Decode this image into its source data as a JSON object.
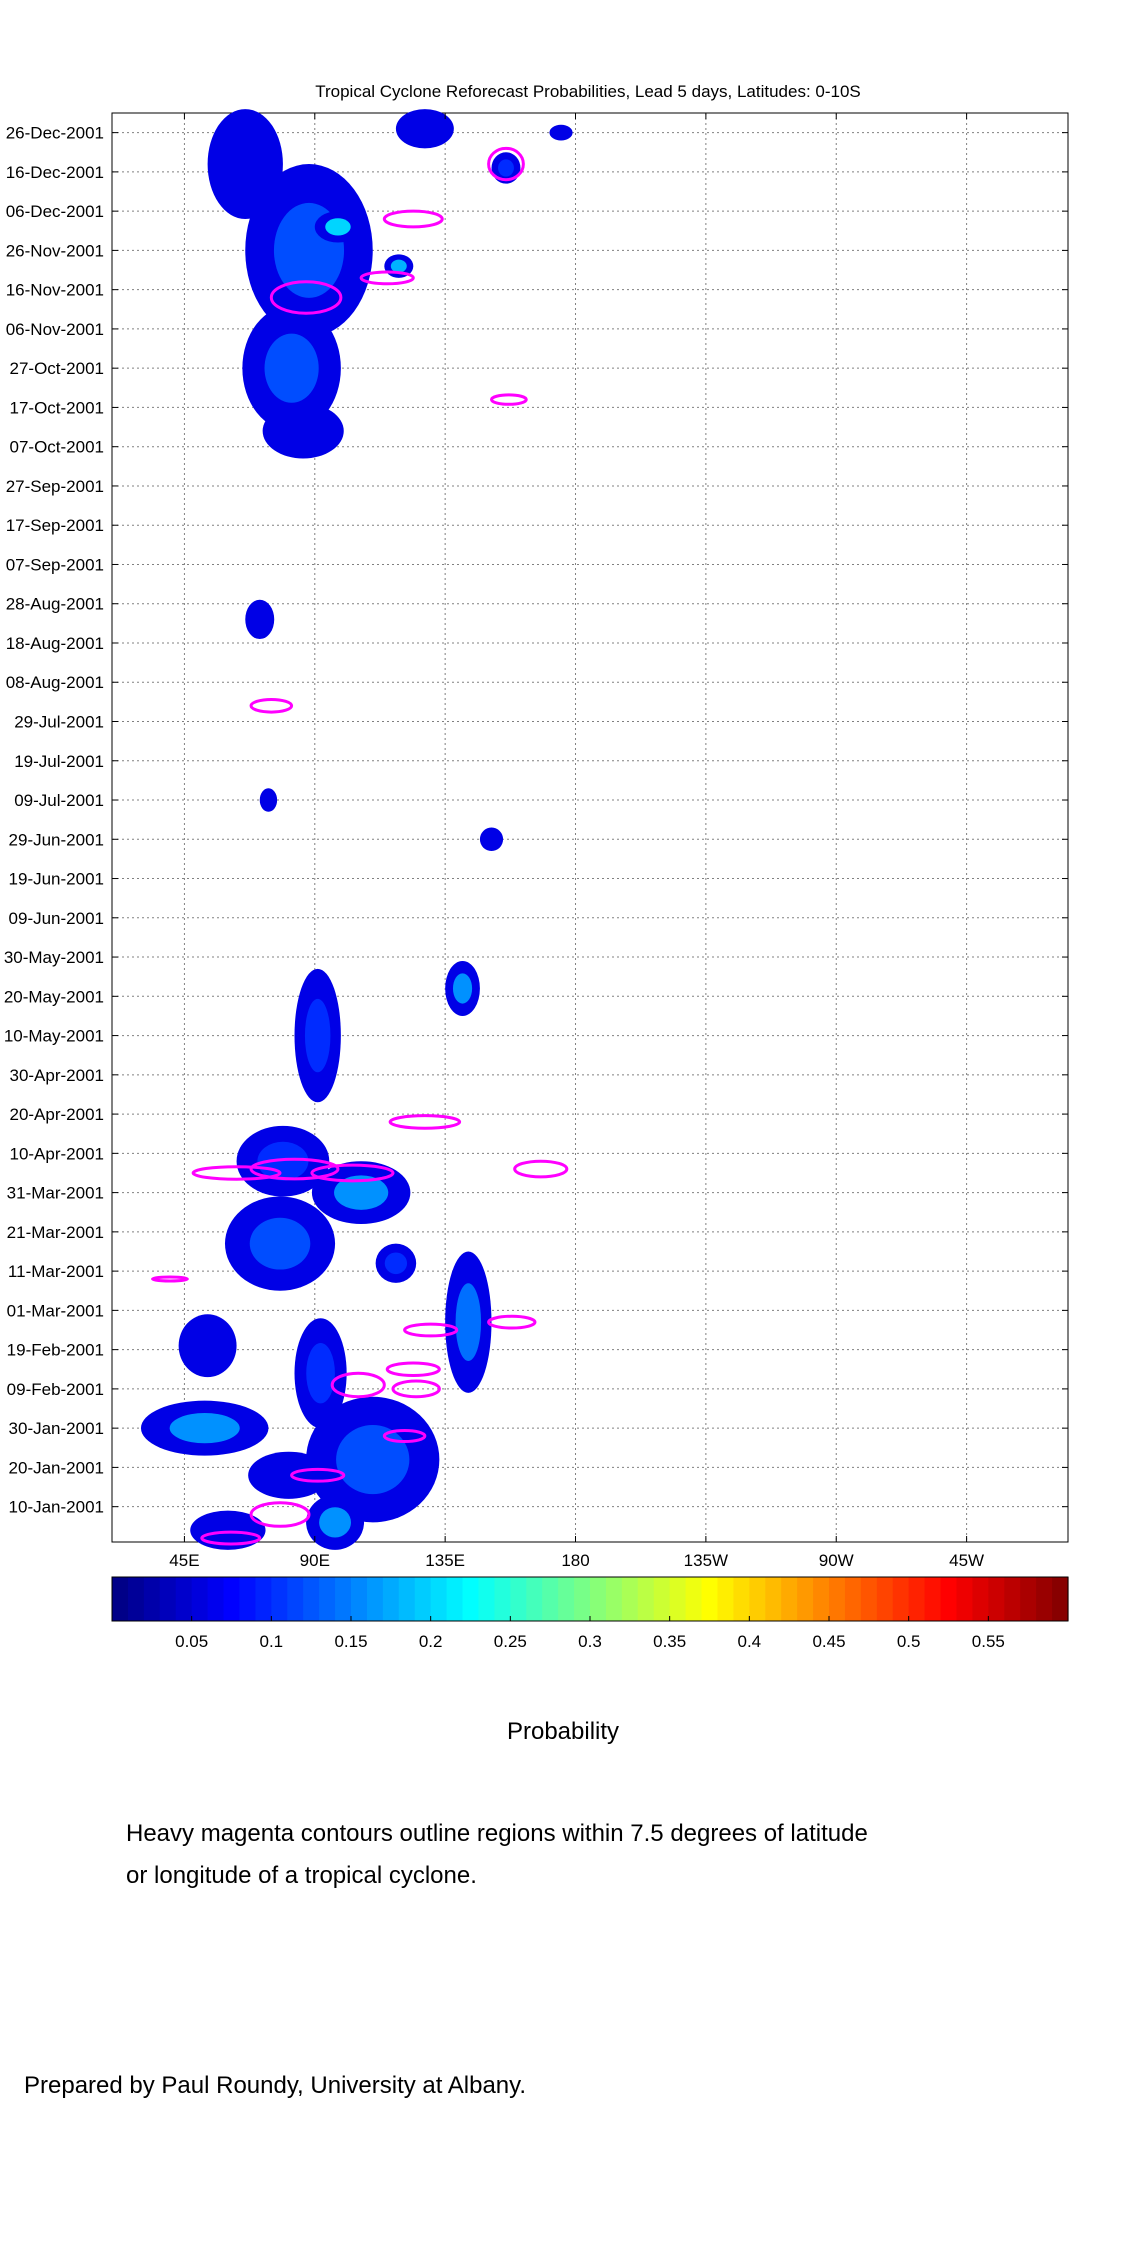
{
  "chart_data": {
    "type": "heatmap",
    "title": "Tropical Cyclone Reforecast Probabilities, Lead 5 days, Latitudes: 0-10S",
    "x_ticks": [
      {
        "lon": 45,
        "label": "45E"
      },
      {
        "lon": 90,
        "label": "90E"
      },
      {
        "lon": 135,
        "label": "135E"
      },
      {
        "lon": 180,
        "label": "180"
      },
      {
        "lon": 225,
        "label": "135W"
      },
      {
        "lon": 270,
        "label": "90W"
      },
      {
        "lon": 315,
        "label": "45W"
      }
    ],
    "xlim": [
      20,
      350
    ],
    "y_ticks": [
      {
        "day": 360,
        "label": "26-Dec-2001"
      },
      {
        "day": 350,
        "label": "16-Dec-2001"
      },
      {
        "day": 340,
        "label": "06-Dec-2001"
      },
      {
        "day": 330,
        "label": "26-Nov-2001"
      },
      {
        "day": 320,
        "label": "16-Nov-2001"
      },
      {
        "day": 310,
        "label": "06-Nov-2001"
      },
      {
        "day": 300,
        "label": "27-Oct-2001"
      },
      {
        "day": 290,
        "label": "17-Oct-2001"
      },
      {
        "day": 280,
        "label": "07-Oct-2001"
      },
      {
        "day": 270,
        "label": "27-Sep-2001"
      },
      {
        "day": 260,
        "label": "17-Sep-2001"
      },
      {
        "day": 250,
        "label": "07-Sep-2001"
      },
      {
        "day": 240,
        "label": "28-Aug-2001"
      },
      {
        "day": 230,
        "label": "18-Aug-2001"
      },
      {
        "day": 220,
        "label": "08-Aug-2001"
      },
      {
        "day": 210,
        "label": "29-Jul-2001"
      },
      {
        "day": 200,
        "label": "19-Jul-2001"
      },
      {
        "day": 190,
        "label": "09-Jul-2001"
      },
      {
        "day": 180,
        "label": "29-Jun-2001"
      },
      {
        "day": 170,
        "label": "19-Jun-2001"
      },
      {
        "day": 160,
        "label": "09-Jun-2001"
      },
      {
        "day": 150,
        "label": "30-May-2001"
      },
      {
        "day": 140,
        "label": "20-May-2001"
      },
      {
        "day": 130,
        "label": "10-May-2001"
      },
      {
        "day": 120,
        "label": "30-Apr-2001"
      },
      {
        "day": 110,
        "label": "20-Apr-2001"
      },
      {
        "day": 100,
        "label": "10-Apr-2001"
      },
      {
        "day": 90,
        "label": "31-Mar-2001"
      },
      {
        "day": 80,
        "label": "21-Mar-2001"
      },
      {
        "day": 70,
        "label": "11-Mar-2001"
      },
      {
        "day": 60,
        "label": "01-Mar-2001"
      },
      {
        "day": 50,
        "label": "19-Feb-2001"
      },
      {
        "day": 40,
        "label": "09-Feb-2001"
      },
      {
        "day": 30,
        "label": "30-Jan-2001"
      },
      {
        "day": 20,
        "label": "20-Jan-2001"
      },
      {
        "day": 10,
        "label": "10-Jan-2001"
      }
    ],
    "ylim": [
      1,
      365
    ],
    "grid": true,
    "colorbar": {
      "orientation": "horizontal",
      "range": [
        0,
        0.6
      ],
      "ticks": [
        0.05,
        0.1,
        0.15,
        0.2,
        0.25,
        0.3,
        0.35,
        0.4,
        0.45,
        0.5,
        0.55
      ],
      "tick_labels": [
        "0.05",
        "0.1",
        "0.15",
        "0.2",
        "0.25",
        "0.3",
        "0.35",
        "0.4",
        "0.45",
        "0.5",
        "0.55"
      ],
      "label": "Probability",
      "colormap": "jet"
    },
    "probability_regions": [
      {
        "lon": 66,
        "day": 352,
        "dlon": 13,
        "dday": 14,
        "p": 0.08
      },
      {
        "lon": 88,
        "day": 330,
        "dlon": 22,
        "dday": 22,
        "p": 0.12
      },
      {
        "lon": 98,
        "day": 336,
        "dlon": 8,
        "dday": 4,
        "p": 0.2
      },
      {
        "lon": 82,
        "day": 300,
        "dlon": 17,
        "dday": 16,
        "p": 0.12
      },
      {
        "lon": 86,
        "day": 284,
        "dlon": 14,
        "dday": 7,
        "p": 0.08
      },
      {
        "lon": 128,
        "day": 361,
        "dlon": 10,
        "dday": 5,
        "p": 0.08
      },
      {
        "lon": 156,
        "day": 351,
        "dlon": 5,
        "dday": 4,
        "p": 0.1
      },
      {
        "lon": 119,
        "day": 326,
        "dlon": 5,
        "dday": 3,
        "p": 0.18
      },
      {
        "lon": 175,
        "day": 360,
        "dlon": 4,
        "dday": 2,
        "p": 0.08
      },
      {
        "lon": 71,
        "day": 236,
        "dlon": 5,
        "dday": 5,
        "p": 0.07
      },
      {
        "lon": 74,
        "day": 190,
        "dlon": 3,
        "dday": 3,
        "p": 0.07
      },
      {
        "lon": 151,
        "day": 180,
        "dlon": 4,
        "dday": 3,
        "p": 0.07
      },
      {
        "lon": 141,
        "day": 142,
        "dlon": 6,
        "dday": 7,
        "p": 0.16
      },
      {
        "lon": 91,
        "day": 130,
        "dlon": 8,
        "dday": 17,
        "p": 0.1
      },
      {
        "lon": 79,
        "day": 98,
        "dlon": 16,
        "dday": 9,
        "p": 0.1
      },
      {
        "lon": 106,
        "day": 90,
        "dlon": 17,
        "dday": 8,
        "p": 0.16
      },
      {
        "lon": 78,
        "day": 77,
        "dlon": 19,
        "dday": 12,
        "p": 0.12
      },
      {
        "lon": 118,
        "day": 72,
        "dlon": 7,
        "dday": 5,
        "p": 0.1
      },
      {
        "lon": 143,
        "day": 57,
        "dlon": 8,
        "dday": 18,
        "p": 0.14
      },
      {
        "lon": 53,
        "day": 51,
        "dlon": 10,
        "dday": 8,
        "p": 0.08
      },
      {
        "lon": 92,
        "day": 44,
        "dlon": 9,
        "dday": 14,
        "p": 0.1
      },
      {
        "lon": 52,
        "day": 30,
        "dlon": 22,
        "dday": 7,
        "p": 0.16
      },
      {
        "lon": 110,
        "day": 22,
        "dlon": 23,
        "dday": 16,
        "p": 0.12
      },
      {
        "lon": 81,
        "day": 18,
        "dlon": 14,
        "dday": 6,
        "p": 0.08
      },
      {
        "lon": 97,
        "day": 6,
        "dlon": 10,
        "dday": 7,
        "p": 0.16
      },
      {
        "lon": 60,
        "day": 4,
        "dlon": 13,
        "dday": 5,
        "p": 0.08
      }
    ],
    "tc_contours": [
      {
        "lon": 156,
        "day": 352,
        "dlon": 6,
        "dday": 4
      },
      {
        "lon": 124,
        "day": 338,
        "dlon": 10,
        "dday": 2
      },
      {
        "lon": 87,
        "day": 318,
        "dlon": 12,
        "dday": 4
      },
      {
        "lon": 115,
        "day": 323,
        "dlon": 9,
        "dday": 1.5
      },
      {
        "lon": 157,
        "day": 292,
        "dlon": 6,
        "dday": 1.2
      },
      {
        "lon": 75,
        "day": 214,
        "dlon": 7,
        "dday": 1.6
      },
      {
        "lon": 128,
        "day": 108,
        "dlon": 12,
        "dday": 1.6
      },
      {
        "lon": 168,
        "day": 96,
        "dlon": 9,
        "dday": 2
      },
      {
        "lon": 63,
        "day": 95,
        "dlon": 15,
        "dday": 1.6
      },
      {
        "lon": 83,
        "day": 96,
        "dlon": 15,
        "dday": 2.5
      },
      {
        "lon": 103,
        "day": 95,
        "dlon": 14,
        "dday": 2
      },
      {
        "lon": 40,
        "day": 68,
        "dlon": 6,
        "dday": 0.2
      },
      {
        "lon": 130,
        "day": 55,
        "dlon": 9,
        "dday": 1.5
      },
      {
        "lon": 158,
        "day": 57,
        "dlon": 8,
        "dday": 1.5
      },
      {
        "lon": 124,
        "day": 45,
        "dlon": 9,
        "dday": 1.6
      },
      {
        "lon": 125,
        "day": 40,
        "dlon": 8,
        "dday": 2
      },
      {
        "lon": 105,
        "day": 41,
        "dlon": 9,
        "dday": 3
      },
      {
        "lon": 121,
        "day": 28,
        "dlon": 7,
        "dday": 1.4
      },
      {
        "lon": 91,
        "day": 18,
        "dlon": 9,
        "dday": 1.5
      },
      {
        "lon": 78,
        "day": 8,
        "dlon": 10,
        "dday": 3
      },
      {
        "lon": 61,
        "day": 2,
        "dlon": 10,
        "dday": 1.5
      }
    ]
  },
  "figure": {
    "title": "Tropical Cyclone Reforecast Probabilities, Lead 5 days, Latitudes: 0-10S",
    "colorbar_label": "Probability",
    "note_line1": "Heavy magenta contours outline regions within 7.5 degrees of latitude",
    "note_line2": "or longitude of a tropical cyclone.",
    "credit": "Prepared by Paul Roundy, University at Albany."
  },
  "colors": {
    "contour": "#ff00ff",
    "grid": "#808080"
  }
}
